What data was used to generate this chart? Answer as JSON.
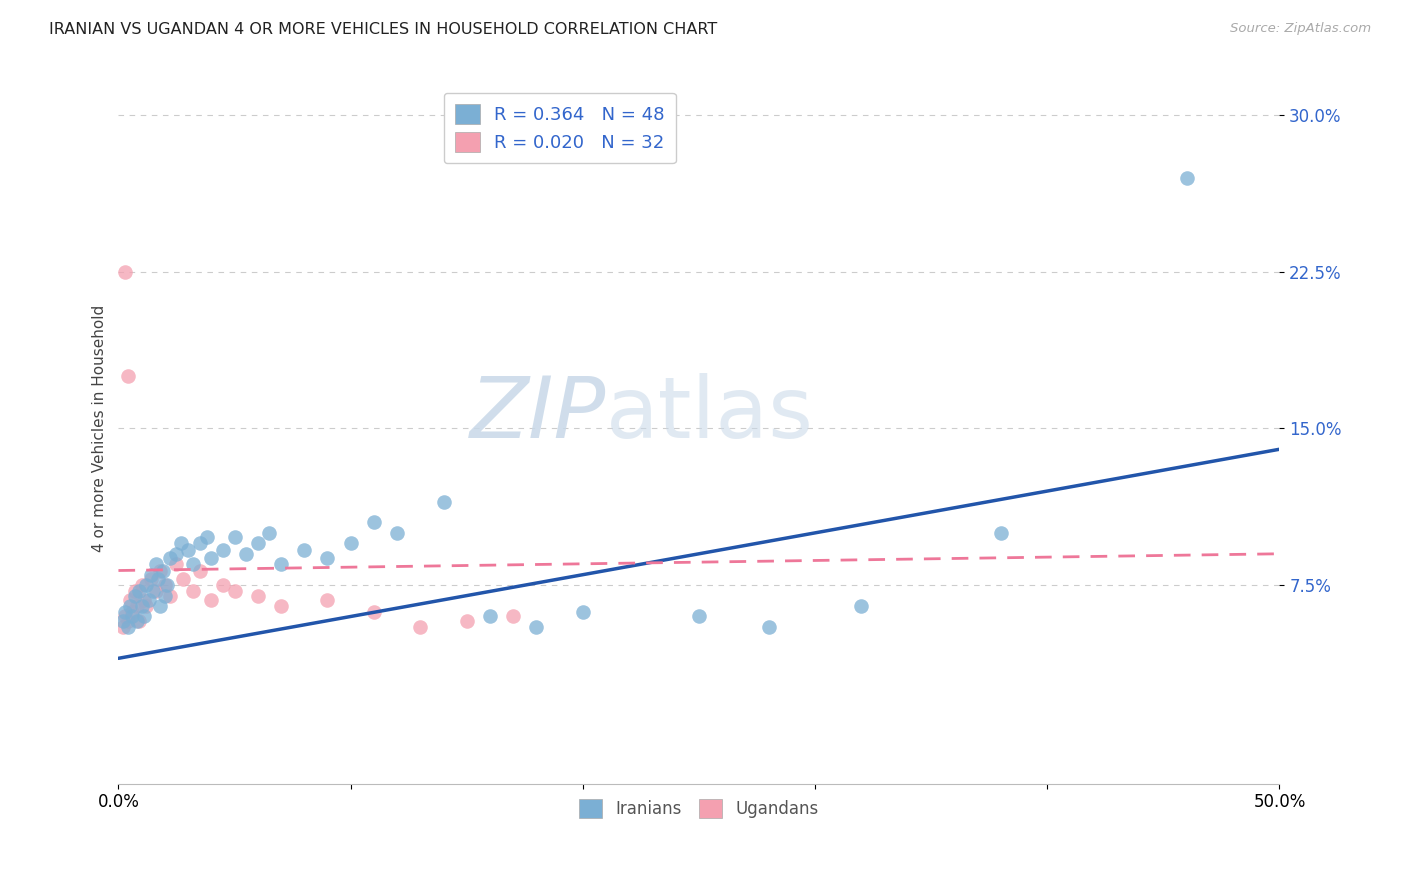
{
  "title": "IRANIAN VS UGANDAN 4 OR MORE VEHICLES IN HOUSEHOLD CORRELATION CHART",
  "source": "Source: ZipAtlas.com",
  "ylabel": "4 or more Vehicles in Household",
  "xlim": [
    0.0,
    0.5
  ],
  "ylim": [
    -0.02,
    0.32
  ],
  "yticks": [
    0.075,
    0.15,
    0.225,
    0.3
  ],
  "ytick_labels": [
    "7.5%",
    "15.0%",
    "22.5%",
    "30.0%"
  ],
  "iranian_color": "#7BAFD4",
  "ugandan_color": "#F4A0B0",
  "iranian_line_color": "#2255AA",
  "ugandan_line_color": "#EE7799",
  "background_color": "#FFFFFF",
  "watermark_zip": "ZIP",
  "watermark_atlas": "atlas",
  "iranian_x": [
    0.002,
    0.003,
    0.004,
    0.005,
    0.006,
    0.007,
    0.008,
    0.009,
    0.01,
    0.011,
    0.012,
    0.013,
    0.014,
    0.015,
    0.016,
    0.017,
    0.018,
    0.019,
    0.02,
    0.021,
    0.022,
    0.025,
    0.027,
    0.03,
    0.032,
    0.035,
    0.038,
    0.04,
    0.045,
    0.05,
    0.055,
    0.06,
    0.065,
    0.07,
    0.08,
    0.09,
    0.1,
    0.11,
    0.12,
    0.14,
    0.16,
    0.18,
    0.2,
    0.25,
    0.28,
    0.32,
    0.38,
    0.46
  ],
  "iranian_y": [
    0.058,
    0.062,
    0.055,
    0.065,
    0.06,
    0.07,
    0.058,
    0.072,
    0.065,
    0.06,
    0.075,
    0.068,
    0.08,
    0.072,
    0.085,
    0.078,
    0.065,
    0.082,
    0.07,
    0.075,
    0.088,
    0.09,
    0.095,
    0.092,
    0.085,
    0.095,
    0.098,
    0.088,
    0.092,
    0.098,
    0.09,
    0.095,
    0.1,
    0.085,
    0.092,
    0.088,
    0.095,
    0.105,
    0.1,
    0.115,
    0.06,
    0.055,
    0.062,
    0.06,
    0.055,
    0.065,
    0.1,
    0.27
  ],
  "ugandan_x": [
    0.002,
    0.003,
    0.004,
    0.005,
    0.006,
    0.007,
    0.008,
    0.009,
    0.01,
    0.011,
    0.012,
    0.014,
    0.016,
    0.018,
    0.02,
    0.022,
    0.025,
    0.028,
    0.032,
    0.035,
    0.04,
    0.045,
    0.05,
    0.06,
    0.07,
    0.09,
    0.11,
    0.13,
    0.15,
    0.17,
    0.003,
    0.004
  ],
  "ugandan_y": [
    0.055,
    0.06,
    0.058,
    0.068,
    0.062,
    0.072,
    0.065,
    0.058,
    0.075,
    0.068,
    0.065,
    0.078,
    0.072,
    0.082,
    0.075,
    0.07,
    0.085,
    0.078,
    0.072,
    0.082,
    0.068,
    0.075,
    0.072,
    0.07,
    0.065,
    0.068,
    0.062,
    0.055,
    0.058,
    0.06,
    0.225,
    0.175
  ],
  "ir_line_x0": 0.0,
  "ir_line_y0": 0.04,
  "ir_line_x1": 0.5,
  "ir_line_y1": 0.14,
  "ug_line_x0": 0.0,
  "ug_line_y0": 0.082,
  "ug_line_x1": 0.5,
  "ug_line_y1": 0.09
}
